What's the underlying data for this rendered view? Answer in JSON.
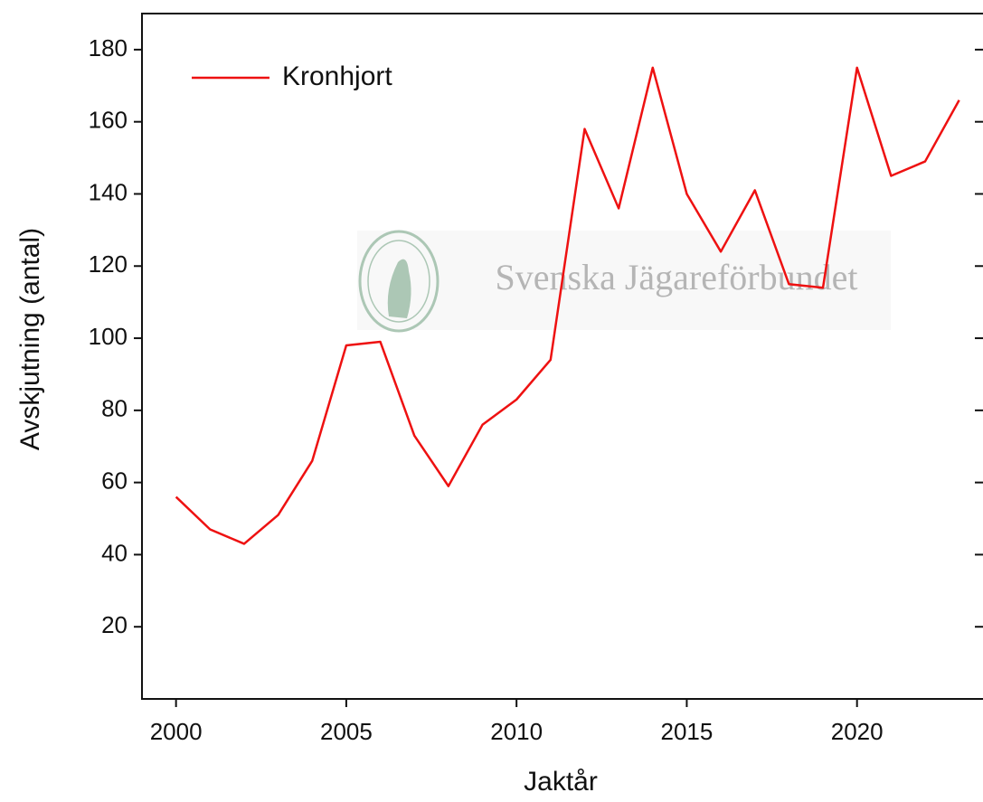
{
  "chart_data": {
    "type": "line",
    "xlabel": "Jaktår",
    "ylabel": "Avskjutning (antal)",
    "watermark": "Svenska Jägareförbundet",
    "watermark_logo": "JÄGAREFÖRBUNDET 1830",
    "x": [
      2000,
      2001,
      2002,
      2003,
      2004,
      2005,
      2006,
      2007,
      2008,
      2009,
      2010,
      2011,
      2012,
      2013,
      2014,
      2015,
      2016,
      2017,
      2018,
      2019,
      2020,
      2021,
      2022,
      2023
    ],
    "series": [
      {
        "name": "Kronhjort",
        "color": "#ee1111",
        "values": [
          56,
          47,
          43,
          51,
          66,
          98,
          99,
          73,
          59,
          76,
          83,
          94,
          158,
          136,
          175,
          140,
          124,
          141,
          115,
          114,
          175,
          145,
          149,
          166
        ]
      }
    ],
    "xlim": [
      1999,
      2023.7
    ],
    "xticks": [
      2000,
      2005,
      2010,
      2015,
      2020
    ],
    "ylim": [
      0,
      190
    ],
    "yticks": [
      20,
      40,
      60,
      80,
      100,
      120,
      140,
      160,
      180
    ],
    "legend": "upper left"
  }
}
